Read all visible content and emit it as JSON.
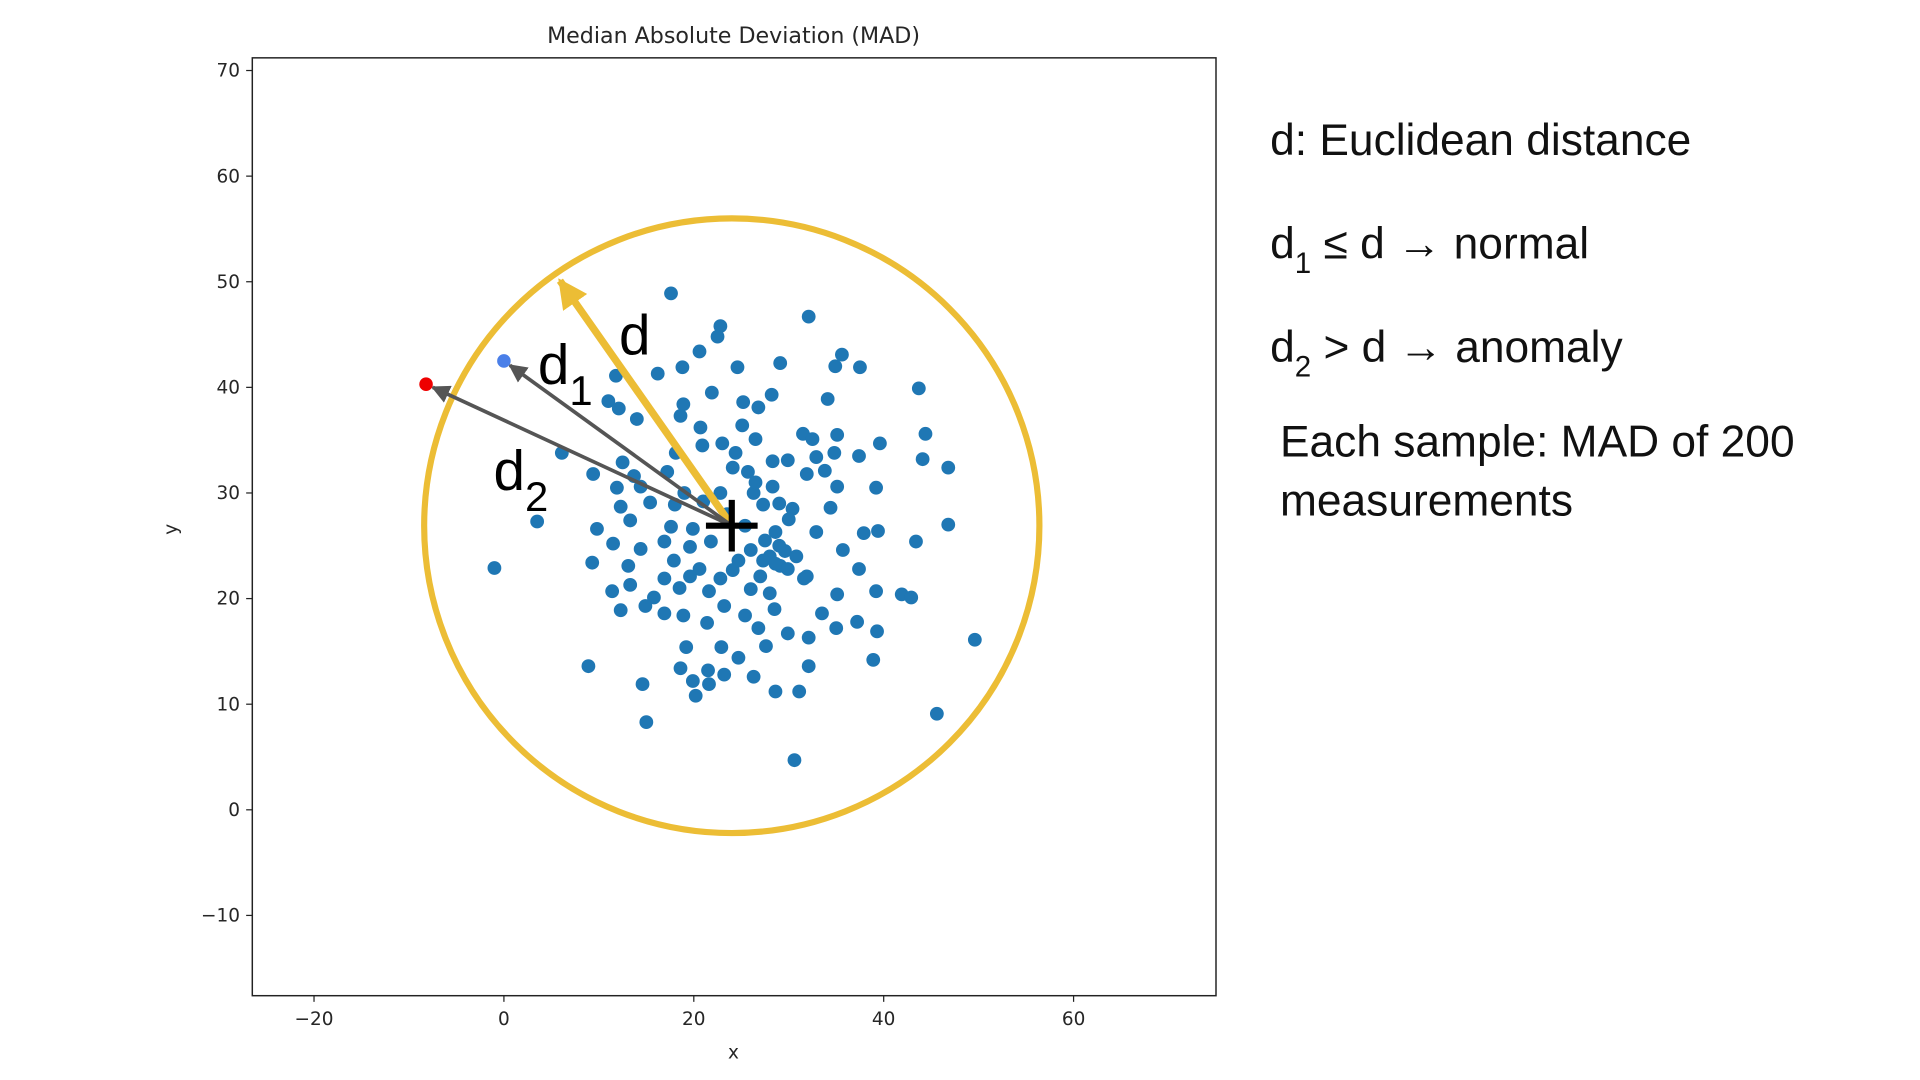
{
  "chart_data": {
    "type": "scatter",
    "title": "Median Absolute Deviation (MAD)",
    "xlabel": "x",
    "ylabel": "y",
    "xlim": [
      -26.5,
      75
    ],
    "ylim": [
      -17.6,
      71.2
    ],
    "xticks": [
      -20,
      0,
      20,
      40,
      60
    ],
    "yticks": [
      -10,
      0,
      10,
      20,
      30,
      40,
      50,
      60,
      70
    ],
    "xtick_labels": [
      "−20",
      "0",
      "20",
      "40",
      "60"
    ],
    "ytick_labels": [
      "−10",
      "0",
      "10",
      "20",
      "30",
      "40",
      "50",
      "60",
      "70"
    ],
    "grid": false,
    "colors": {
      "points": "#1f77b4",
      "circle": "#ecbd35",
      "normal_point": "#4a7fe8",
      "anomaly_point": "#ee0000",
      "distance_arrows": "#555555"
    },
    "center": [
      24,
      26.9
    ],
    "threshold_circle_radius": {
      "x_units": 32.4,
      "y_units": 29.1
    },
    "threshold_arrow_tip": [
      5.9,
      50.1
    ],
    "normal_point": [
      0,
      42.5
    ],
    "anomaly_point": [
      -8.2,
      40.3
    ],
    "points": [
      [
        17.6,
        48.9
      ],
      [
        22.8,
        45.8
      ],
      [
        22.5,
        44.8
      ],
      [
        32.1,
        46.7
      ],
      [
        20.6,
        43.4
      ],
      [
        18.8,
        41.9
      ],
      [
        16.2,
        41.3
      ],
      [
        24.6,
        41.9
      ],
      [
        29.1,
        42.3
      ],
      [
        35.6,
        43.1
      ],
      [
        34.9,
        42.0
      ],
      [
        37.5,
        41.9
      ],
      [
        11.8,
        41.1
      ],
      [
        21.9,
        39.5
      ],
      [
        25.2,
        38.6
      ],
      [
        26.8,
        38.1
      ],
      [
        28.2,
        39.3
      ],
      [
        34.1,
        38.9
      ],
      [
        43.7,
        39.9
      ],
      [
        11.0,
        38.7
      ],
      [
        12.1,
        38.0
      ],
      [
        14.0,
        37.0
      ],
      [
        18.9,
        38.4
      ],
      [
        18.6,
        37.3
      ],
      [
        20.7,
        36.2
      ],
      [
        25.1,
        36.4
      ],
      [
        44.4,
        35.6
      ],
      [
        39.6,
        34.7
      ],
      [
        23.0,
        34.7
      ],
      [
        26.5,
        35.1
      ],
      [
        31.5,
        35.6
      ],
      [
        32.5,
        35.1
      ],
      [
        35.1,
        35.5
      ],
      [
        6.1,
        33.8
      ],
      [
        12.5,
        32.9
      ],
      [
        18.1,
        33.8
      ],
      [
        20.9,
        34.5
      ],
      [
        24.4,
        33.8
      ],
      [
        28.3,
        33.0
      ],
      [
        29.9,
        33.1
      ],
      [
        32.9,
        33.4
      ],
      [
        34.8,
        33.8
      ],
      [
        37.4,
        33.5
      ],
      [
        44.1,
        33.2
      ],
      [
        46.8,
        32.4
      ],
      [
        9.4,
        31.8
      ],
      [
        13.7,
        31.6
      ],
      [
        17.2,
        32.0
      ],
      [
        24.1,
        32.4
      ],
      [
        25.7,
        32.0
      ],
      [
        31.9,
        31.8
      ],
      [
        33.8,
        32.1
      ],
      [
        11.9,
        30.5
      ],
      [
        14.4,
        30.6
      ],
      [
        19.0,
        30.0
      ],
      [
        22.8,
        30.0
      ],
      [
        26.3,
        30.0
      ],
      [
        28.3,
        30.6
      ],
      [
        35.1,
        30.6
      ],
      [
        39.2,
        30.5
      ],
      [
        12.3,
        28.7
      ],
      [
        15.4,
        29.1
      ],
      [
        18.0,
        28.9
      ],
      [
        21.0,
        29.2
      ],
      [
        27.3,
        28.9
      ],
      [
        30.4,
        28.5
      ],
      [
        34.4,
        28.6
      ],
      [
        3.5,
        27.3
      ],
      [
        9.8,
        26.6
      ],
      [
        13.3,
        27.4
      ],
      [
        17.6,
        26.8
      ],
      [
        19.9,
        26.6
      ],
      [
        25.4,
        26.9
      ],
      [
        28.6,
        26.3
      ],
      [
        32.9,
        26.3
      ],
      [
        37.9,
        26.2
      ],
      [
        39.4,
        26.4
      ],
      [
        43.4,
        25.4
      ],
      [
        46.8,
        27.0
      ],
      [
        11.5,
        25.2
      ],
      [
        14.4,
        24.7
      ],
      [
        16.9,
        25.4
      ],
      [
        19.6,
        24.9
      ],
      [
        21.8,
        25.4
      ],
      [
        26.0,
        24.6
      ],
      [
        28.0,
        24.0
      ],
      [
        29.6,
        24.5
      ],
      [
        30.8,
        24.0
      ],
      [
        35.7,
        24.6
      ],
      [
        -1.0,
        22.9
      ],
      [
        9.3,
        23.4
      ],
      [
        13.1,
        23.1
      ],
      [
        17.9,
        23.6
      ],
      [
        20.6,
        22.8
      ],
      [
        24.1,
        22.7
      ],
      [
        29.1,
        23.1
      ],
      [
        31.9,
        22.1
      ],
      [
        37.4,
        22.8
      ],
      [
        11.4,
        20.7
      ],
      [
        13.3,
        21.3
      ],
      [
        15.8,
        20.1
      ],
      [
        18.5,
        21.0
      ],
      [
        21.6,
        20.7
      ],
      [
        26.0,
        20.9
      ],
      [
        28.0,
        20.5
      ],
      [
        31.6,
        21.9
      ],
      [
        35.1,
        20.4
      ],
      [
        39.2,
        20.7
      ],
      [
        41.9,
        20.4
      ],
      [
        42.9,
        20.1
      ],
      [
        12.3,
        18.9
      ],
      [
        14.9,
        19.3
      ],
      [
        16.9,
        18.6
      ],
      [
        18.9,
        18.4
      ],
      [
        23.2,
        19.3
      ],
      [
        25.4,
        18.4
      ],
      [
        28.5,
        19.0
      ],
      [
        33.5,
        18.6
      ],
      [
        35.0,
        17.2
      ],
      [
        37.2,
        17.8
      ],
      [
        39.3,
        16.9
      ],
      [
        49.6,
        16.1
      ],
      [
        21.4,
        17.7
      ],
      [
        26.8,
        17.2
      ],
      [
        29.9,
        16.7
      ],
      [
        32.1,
        16.3
      ],
      [
        19.2,
        15.4
      ],
      [
        22.9,
        15.4
      ],
      [
        24.7,
        14.4
      ],
      [
        27.6,
        15.5
      ],
      [
        38.9,
        14.2
      ],
      [
        8.9,
        13.6
      ],
      [
        18.6,
        13.4
      ],
      [
        21.5,
        13.2
      ],
      [
        23.2,
        12.8
      ],
      [
        26.3,
        12.6
      ],
      [
        32.1,
        13.6
      ],
      [
        14.6,
        11.9
      ],
      [
        19.9,
        12.2
      ],
      [
        21.6,
        11.9
      ],
      [
        28.6,
        11.2
      ],
      [
        31.1,
        11.2
      ],
      [
        20.2,
        10.8
      ],
      [
        45.6,
        9.1
      ],
      [
        15.0,
        8.3
      ],
      [
        30.6,
        4.7
      ],
      [
        27.3,
        23.6
      ],
      [
        28.6,
        23.3
      ],
      [
        29.9,
        22.8
      ],
      [
        27.0,
        22.1
      ],
      [
        24.7,
        23.6
      ],
      [
        22.8,
        21.9
      ],
      [
        19.6,
        22.1
      ],
      [
        16.9,
        21.9
      ],
      [
        29.0,
        25.0
      ],
      [
        27.5,
        25.5
      ],
      [
        30.0,
        27.5
      ],
      [
        23.5,
        28.0
      ],
      [
        26.5,
        31.0
      ],
      [
        29.0,
        29.0
      ]
    ]
  },
  "annotations": {
    "d_label": "d",
    "d1_label": "d",
    "d1_sub": "1",
    "d2_label": "d",
    "d2_sub": "2"
  },
  "notes": {
    "line1": "d: Euclidean distance",
    "line2_d": "d",
    "line2_sub": "1",
    "line2_rest": " ≤ d → normal",
    "line3_d": "d",
    "line3_sub": "2",
    "line3_rest": " > d → anomaly",
    "line4": "Each sample: MAD of 200",
    "line5": "measurements"
  }
}
